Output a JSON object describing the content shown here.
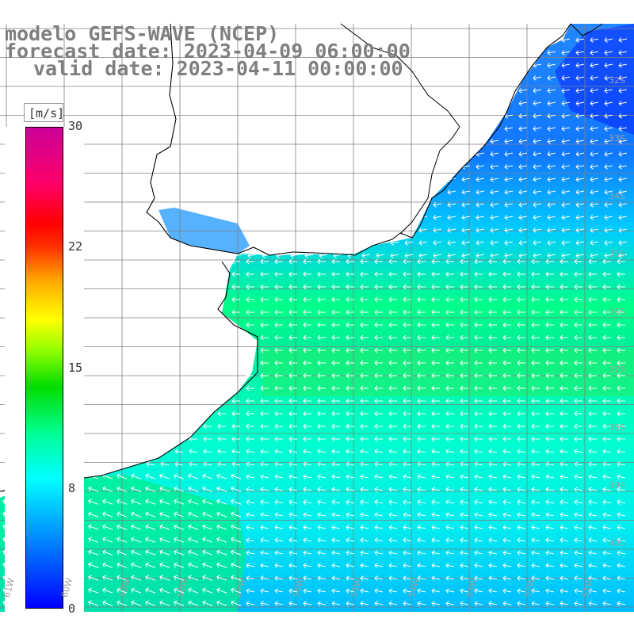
{
  "title": {
    "line1": "modelo GEFS-WAVE (NCEP)",
    "line2": "forecast date: 2023-04-09 06:00:00",
    "line3": "valid date: 2023-04-11 00:00:00"
  },
  "colorbar": {
    "unit": "[m/s]",
    "ticks": [
      "30",
      "22",
      "15",
      "8",
      "0"
    ],
    "min": 0,
    "max": 30
  },
  "map": {
    "variable": "wind speed and direction",
    "land_color": "#ffffff",
    "coastline_color": "#000000",
    "grid_color": "#808080",
    "lat_labels": [
      "32S",
      "33S",
      "34S",
      "35S",
      "36S",
      "37S",
      "38S",
      "39S",
      "40S"
    ],
    "lon_labels": [
      "61W",
      "60W",
      "59W",
      "58W",
      "57W",
      "56W",
      "55W",
      "54W",
      "53W",
      "52W",
      "51W"
    ],
    "wind_field_description": "easterly winds along shelf, stronger (green) band near 37S and southwest corner"
  }
}
